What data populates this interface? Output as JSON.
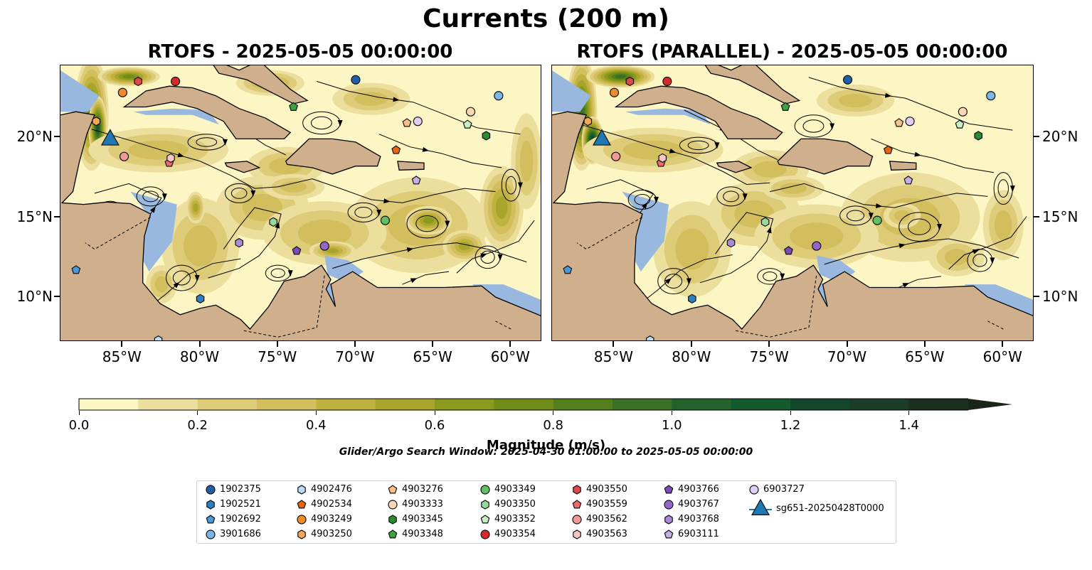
{
  "figure_title": "Currents (200 m)",
  "panels": [
    {
      "title": "RTOFS - 2025-05-05 00:00:00",
      "field": "base"
    },
    {
      "title": "RTOFS (PARALLEL) - 2025-05-05 00:00:00",
      "field": "parallel"
    }
  ],
  "colors": {
    "land": "#d0b08c",
    "shallow": "#99b8e0",
    "coast": "#000000"
  },
  "axes": {
    "lon_ticks": [
      "85°W",
      "80°W",
      "75°W",
      "70°W",
      "65°W",
      "60°W"
    ],
    "lon_values": [
      -85,
      -80,
      -75,
      -70,
      -65,
      -60
    ],
    "lat_ticks": [
      "20°N",
      "15°N",
      "10°N"
    ],
    "lat_values": [
      20,
      15,
      10
    ],
    "lon_range": [
      -89,
      -58
    ],
    "lat_range": [
      7.2,
      24.5
    ]
  },
  "colorbar": {
    "title": "Magnitude (m/s)",
    "ticks": [
      "0.0",
      "0.2",
      "0.4",
      "0.6",
      "0.8",
      "1.0",
      "1.2",
      "1.4"
    ],
    "min": 0.0,
    "max": 1.5,
    "step": 0.1,
    "extend": "max",
    "colors": [
      "#fbf6c3",
      "#ecdf9d",
      "#decb78",
      "#d2be5c",
      "#c0b23f",
      "#a9a42c",
      "#8a9a1c",
      "#6f8d18",
      "#537f1c",
      "#3b7026",
      "#23622b",
      "#135a2d",
      "#12472b",
      "#1b3c27",
      "#1b2f20",
      "#19241a"
    ]
  },
  "search_window": "Glider/Argo Search Window: 2025-04-30 01:00:00 to 2025-05-05 00:00:00",
  "legend": [
    {
      "id": "1902375",
      "marker": "circle",
      "color": "#1f5fa8"
    },
    {
      "id": "1902521",
      "marker": "hexagon",
      "color": "#2e7fc2"
    },
    {
      "id": "1902692",
      "marker": "pentagon",
      "color": "#4a98d6"
    },
    {
      "id": "3901686",
      "marker": "circle",
      "color": "#7ab6e6"
    },
    {
      "id": "4902476",
      "marker": "hexagon",
      "color": "#b8dcf4"
    },
    {
      "id": "4902534",
      "marker": "pentagon",
      "color": "#e8650f"
    },
    {
      "id": "4903249",
      "marker": "circle",
      "color": "#f08a2a"
    },
    {
      "id": "4903250",
      "marker": "hexagon",
      "color": "#f6a85a"
    },
    {
      "id": "4903276",
      "marker": "pentagon",
      "color": "#f9c08c"
    },
    {
      "id": "4903333",
      "marker": "circle",
      "color": "#fbd6b2"
    },
    {
      "id": "4903345",
      "marker": "hexagon",
      "color": "#2a8c2a"
    },
    {
      "id": "4903348",
      "marker": "pentagon",
      "color": "#3ea33e"
    },
    {
      "id": "4903349",
      "marker": "circle",
      "color": "#62c062"
    },
    {
      "id": "4903350",
      "marker": "hexagon",
      "color": "#98d898"
    },
    {
      "id": "4903352",
      "marker": "pentagon",
      "color": "#c7eec2"
    },
    {
      "id": "4903354",
      "marker": "circle",
      "color": "#d42a2a"
    },
    {
      "id": "4903550",
      "marker": "hexagon",
      "color": "#e0474a"
    },
    {
      "id": "4903559",
      "marker": "pentagon",
      "color": "#ec6a6a"
    },
    {
      "id": "4903562",
      "marker": "circle",
      "color": "#f29898"
    },
    {
      "id": "4903563",
      "marker": "hexagon",
      "color": "#f9c6c6"
    },
    {
      "id": "4903766",
      "marker": "pentagon",
      "color": "#7b4bb8"
    },
    {
      "id": "4903767",
      "marker": "circle",
      "color": "#9466c9"
    },
    {
      "id": "4903768",
      "marker": "hexagon",
      "color": "#ad8ad6"
    },
    {
      "id": "6903111",
      "marker": "pentagon",
      "color": "#c8aee6"
    },
    {
      "id": "6903727",
      "marker": "circle",
      "color": "#e0cff3"
    },
    {
      "id": "sg651-20250428T0000",
      "marker": "triangle",
      "color": "#1f77b4"
    }
  ],
  "floats": [
    {
      "id": "1902375",
      "lon": -70.0,
      "lat": 23.6
    },
    {
      "id": "1902521",
      "lon": -80.0,
      "lat": 9.9
    },
    {
      "id": "1902692",
      "lon": -88.0,
      "lat": 11.7
    },
    {
      "id": "3901686",
      "lon": -60.8,
      "lat": 22.6
    },
    {
      "id": "4902476",
      "lon": -82.7,
      "lat": 7.3
    },
    {
      "id": "4902534",
      "lon": -67.4,
      "lat": 19.2
    },
    {
      "id": "4903249",
      "lon": -85.0,
      "lat": 22.8
    },
    {
      "id": "4903250",
      "lon": -86.7,
      "lat": 21.0
    },
    {
      "id": "4903276",
      "lon": -66.7,
      "lat": 20.9
    },
    {
      "id": "4903333",
      "lon": -62.6,
      "lat": 21.6
    },
    {
      "id": "4903345",
      "lon": -61.6,
      "lat": 20.1
    },
    {
      "id": "4903348",
      "lon": -74.0,
      "lat": 21.9
    },
    {
      "id": "4903349",
      "lon": -68.1,
      "lat": 14.8
    },
    {
      "id": "4903350",
      "lon": -75.3,
      "lat": 14.7
    },
    {
      "id": "4903352",
      "lon": -62.8,
      "lat": 20.8
    },
    {
      "id": "4903354",
      "lon": -81.6,
      "lat": 23.5
    },
    {
      "id": "4903550",
      "lon": -84.0,
      "lat": 23.5
    },
    {
      "id": "4903559",
      "lon": -82.0,
      "lat": 18.4
    },
    {
      "id": "4903562",
      "lon": -84.9,
      "lat": 18.8
    },
    {
      "id": "4903563",
      "lon": -81.9,
      "lat": 18.7
    },
    {
      "id": "4903766",
      "lon": -73.8,
      "lat": 12.9
    },
    {
      "id": "4903767",
      "lon": -72.0,
      "lat": 13.2
    },
    {
      "id": "4903768",
      "lon": -77.5,
      "lat": 13.4
    },
    {
      "id": "6903111",
      "lon": -66.1,
      "lat": 17.3
    },
    {
      "id": "6903727",
      "lon": -66.0,
      "lat": 21.0
    },
    {
      "id": "sg651-20250428T0000",
      "lon": -85.8,
      "lat": 19.8
    }
  ]
}
